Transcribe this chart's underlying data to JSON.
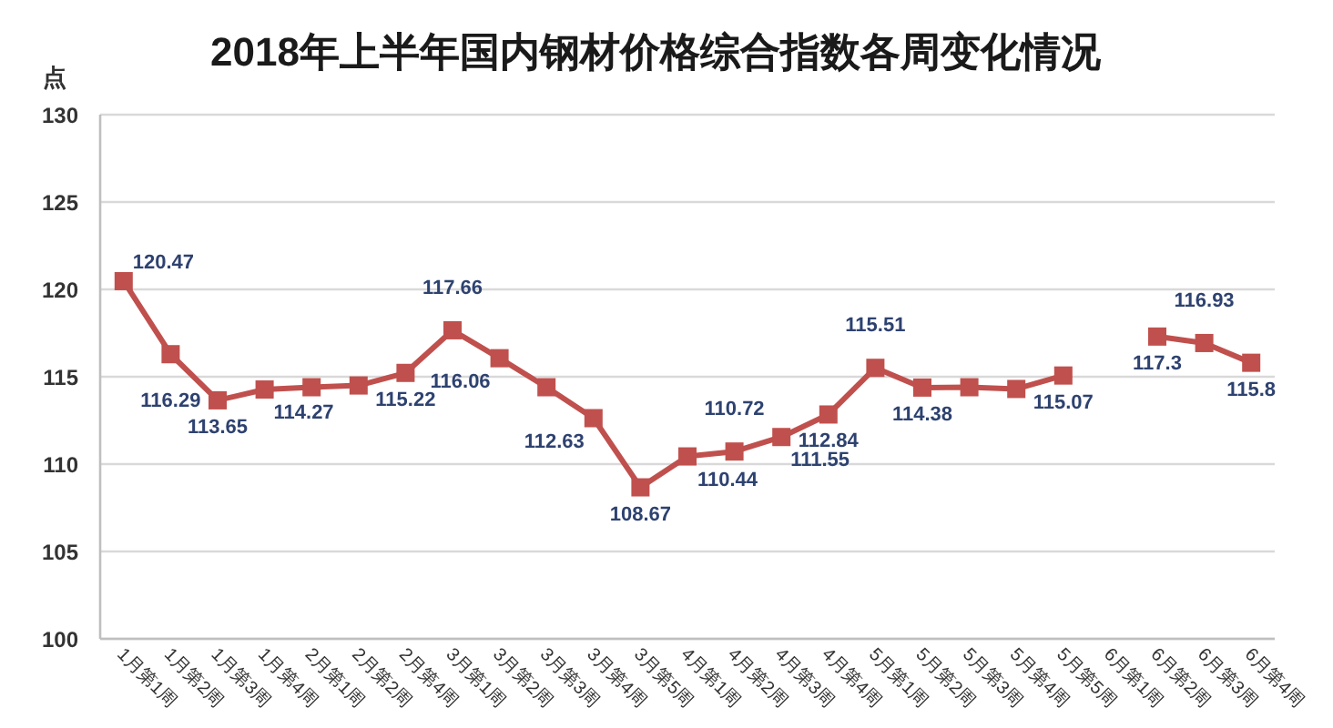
{
  "chart_data": {
    "type": "line",
    "title": "2018年上半年国内钢材价格综合指数各周变化情况",
    "ylabel": "点",
    "categories": [
      "1月第1周",
      "1月第2周",
      "1月第3周",
      "1月第4周",
      "2月第1周",
      "2月第2周",
      "2月第4周",
      "3月第1周",
      "3月第2周",
      "3月第3周",
      "3月第4周",
      "3月第5周",
      "4月第1周",
      "4月第2周",
      "4月第3周",
      "4月第4周",
      "5月第1周",
      "5月第2周",
      "5月第3周",
      "5月第4周",
      "5月第5周",
      "6月第1周",
      "6月第2周",
      "6月第3周",
      "6月第4周"
    ],
    "series": [
      {
        "color": "#c0504d",
        "values": [
          120.47,
          116.29,
          113.65,
          114.27,
          114.4,
          114.5,
          115.22,
          117.66,
          116.06,
          114.4,
          112.63,
          108.67,
          110.44,
          110.72,
          111.55,
          112.84,
          115.51,
          114.38,
          114.4,
          114.3,
          115.07,
          null,
          117.3,
          116.93,
          115.8
        ],
        "value_labels": [
          "120.47",
          "116.29",
          "113.65",
          "114.27",
          null,
          null,
          "115.22",
          "117.66",
          "116.06",
          null,
          "112.63",
          "108.67",
          "110.44",
          "110.72",
          "111.55",
          "112.84",
          "115.51",
          "114.38",
          null,
          null,
          "115.07",
          null,
          "117.3",
          "116.93",
          "115.8"
        ]
      }
    ],
    "ylim": [
      100,
      130
    ],
    "yticks": [
      100,
      105,
      110,
      115,
      120,
      125,
      130
    ],
    "grid": "y",
    "marker": "square",
    "line_style": "solid"
  }
}
